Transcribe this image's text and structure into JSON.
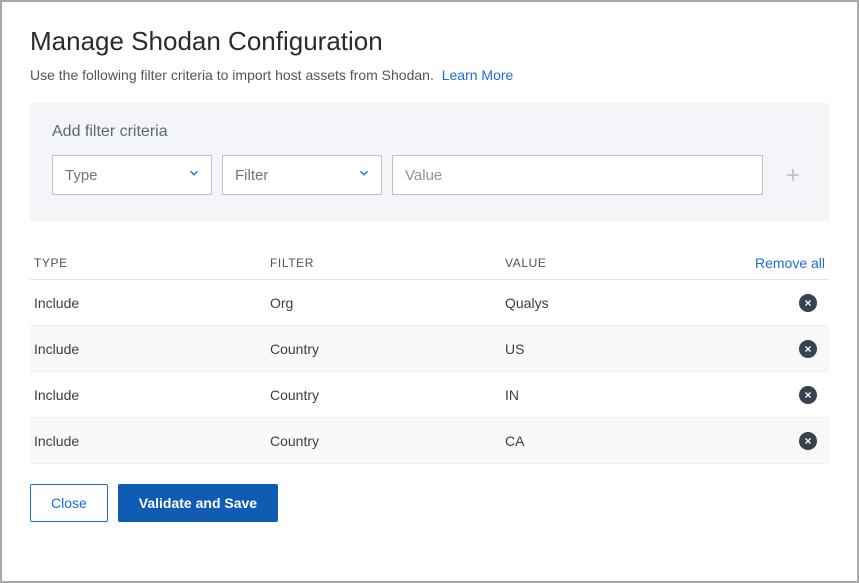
{
  "header": {
    "title": "Manage Shodan Configuration",
    "subtitle": "Use the following filter criteria to import host assets from Shodan.",
    "learn_more": "Learn More"
  },
  "criteria": {
    "label": "Add filter criteria",
    "type_placeholder": "Type",
    "filter_placeholder": "Filter",
    "value_placeholder": "Value"
  },
  "table": {
    "columns": {
      "type": "TYPE",
      "filter": "FILTER",
      "value": "VALUE"
    },
    "remove_all": "Remove all",
    "rows": [
      {
        "type": "Include",
        "filter": "Org",
        "value": "Qualys"
      },
      {
        "type": "Include",
        "filter": "Country",
        "value": "US"
      },
      {
        "type": "Include",
        "filter": "Country",
        "value": "IN"
      },
      {
        "type": "Include",
        "filter": "Country",
        "value": "CA"
      }
    ]
  },
  "footer": {
    "close": "Close",
    "validate_save": "Validate and Save"
  },
  "colors": {
    "link": "#1a6dd6",
    "primary_button": "#105bb4",
    "panel_bg": "#f3f5f8",
    "border": "#b8c3ce",
    "row_alt": "#f8f9fb",
    "icon_bg": "#36434f"
  }
}
